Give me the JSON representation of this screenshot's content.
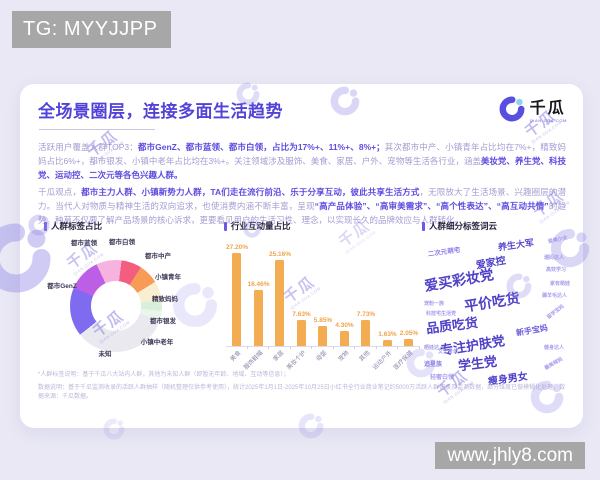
{
  "top_badge": {
    "text": "TG: MYYJJPP"
  },
  "site_badge": {
    "text": "www.jhly8.com"
  },
  "brand": {
    "name": "千瓜",
    "domain": "QIAN-GUA.COM"
  },
  "watermark": {
    "text": "千瓜",
    "subtext": "QIAN-GUA.COM"
  },
  "header": {
    "title": "全场景圈层，连接多面生活趋势"
  },
  "intro": {
    "segments": [
      {
        "t": "活跃用户覆盖人群TOP3：",
        "b": false
      },
      {
        "t": "都市GenZ、都市蓝领、都市白领，占比为17%+、11%+、8%+；",
        "b": true
      },
      {
        "t": "其次都市中产、小镇青年占比均在7%+，精致妈妈占比6%+，都市银发、小镇中老年占比均在3%+。关注领域涉及服饰、美食、家居、户外、宠物等生活各行业，涵盖",
        "b": false
      },
      {
        "t": "美妆党、养生党、科技党、运动控、二次元等各色兴趣人群。",
        "b": true
      }
    ]
  },
  "viewpoint": {
    "segments": [
      {
        "t": "千瓜观点，",
        "b": false
      },
      {
        "t": "都市主力人群、小镇新势力人群，TA们走在流行前沿、乐于分享互动，彼此共享生活方式",
        "b": true
      },
      {
        "t": "，无限放大了生活场景、兴趣圈层的潜力。当代人对物质与精神生活的双向追求，也使消费内涵不断丰富，呈现",
        "b": false
      },
      {
        "t": "“高产品体验”、“高审美需求”、“高个性表达”、“高互动共情”",
        "b": true
      },
      {
        "t": "的趋势。种草不仅要了解产品场景的核心诉求，更要看见用户的生活习性、理念，以实现长久的品牌效应与人群转化。",
        "b": false
      }
    ]
  },
  "chart_data": [
    {
      "type": "pie",
      "variant": "donut",
      "title": "人群标签占比",
      "start_angle_deg": -25,
      "labels_show_percent": true,
      "slices": [
        {
          "label": "都市白领",
          "value": 8.87,
          "color": "#F6B3E0"
        },
        {
          "label": "都市中产",
          "value": 7.16,
          "color": "#F25D80"
        },
        {
          "label": "小镇青年",
          "value": 7.12,
          "color": "#F79B57"
        },
        {
          "label": "精致妈妈",
          "value": 6.7,
          "color": "#F8EFD2"
        },
        {
          "label": "都市银发",
          "value": 3.83,
          "color": "#D9EFDC"
        },
        {
          "label": "小镇中老年",
          "value": 3.33,
          "color": "#EAF5EC"
        },
        {
          "label": "未知",
          "value": 34.21,
          "color": "#E9E9EF"
        },
        {
          "label": "都市GenZ",
          "value": 17.17,
          "color": "#7F6BF0"
        },
        {
          "label": "都市蓝领",
          "value": 11.61,
          "color": "#BC5FE6"
        }
      ]
    },
    {
      "type": "bar",
      "title": "行业互动量占比",
      "unit": "%",
      "categories": [
        "美食",
        "服饰鞋帽",
        "家居",
        "美妆个护",
        "母婴",
        "宠物",
        "其他",
        "运动户外",
        "医疗保健"
      ],
      "values": [
        27.2,
        16.46,
        25.16,
        7.63,
        5.85,
        4.3,
        7.73,
        1.63,
        2.05
      ],
      "value_labels": [
        "27.20%",
        "16.46%",
        "25.16%",
        "7.63%",
        "5.85%",
        "4.30%",
        "7.73%",
        "1.63%",
        "2.05%"
      ],
      "bar_color": "#F3AC52",
      "ylim": [
        0,
        30
      ],
      "grid": false
    },
    {
      "type": "wordcloud",
      "title": "人群细分标签词云",
      "words": [
        {
          "text": "二次元萌宅",
          "tier": "sm+"
        },
        {
          "text": "养生大军",
          "tier": "md"
        },
        {
          "text": "爱美少女",
          "tier": "sm"
        },
        {
          "text": "爱家控",
          "tier": "md"
        },
        {
          "text": "潮妈达人",
          "tier": "sm"
        },
        {
          "text": "高效学习",
          "tier": "sm"
        },
        {
          "text": "爱买彩妆党",
          "tier": "lg"
        },
        {
          "text": "宠粉一族",
          "tier": "sm"
        },
        {
          "text": "家有萌娃",
          "tier": "sm"
        },
        {
          "text": "科技宅生活党",
          "tier": "sm"
        },
        {
          "text": "平价吃货",
          "tier": "lg"
        },
        {
          "text": "薅羊毛达人",
          "tier": "sm"
        },
        {
          "text": "品质吃货",
          "tier": "lg"
        },
        {
          "text": "新手宝妈",
          "tier": "md"
        },
        {
          "text": "留学宝妈",
          "tier": "sm"
        },
        {
          "text": "专注护肤党",
          "tier": "lg"
        },
        {
          "text": "文艺青年",
          "tier": "sm"
        },
        {
          "text": "晒娃达人",
          "tier": "sm"
        },
        {
          "text": "学生党",
          "tier": "lg"
        },
        {
          "text": "追星族",
          "tier": "sm+"
        },
        {
          "text": "健身达人",
          "tier": "sm"
        },
        {
          "text": "轻奢白领",
          "tier": "sm+"
        },
        {
          "text": "瘦身男女",
          "tier": "md"
        },
        {
          "text": "最美辣妈",
          "tier": "sm"
        }
      ]
    }
  ],
  "footnotes": {
    "line1": "*人群标签说明：基于千瓜八大站内人群，其他为未知人群（即暂无年龄、地域、互动等信息）；",
    "line2": "数据说明：基于千瓜监测收录的活跃人群抽样（随机整理仅供参考使用），统计2025年1月1日-2025年10月25日小红书全行业商业笔记约5000万活跃人群记录及监测数据，部分维度已做模糊化处理，数据来源：千瓜数据。"
  }
}
